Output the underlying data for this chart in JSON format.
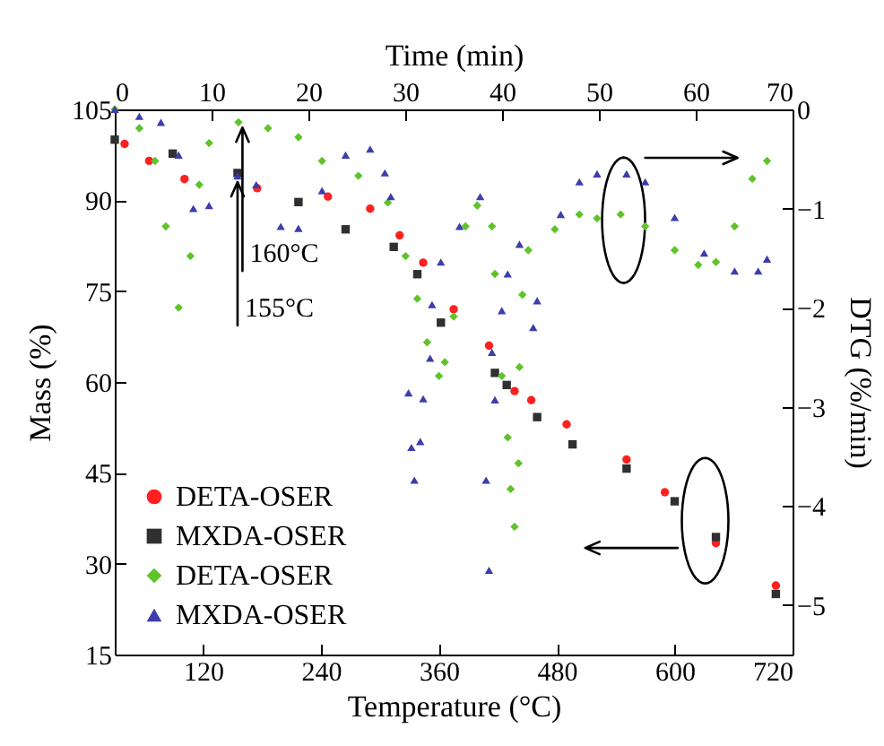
{
  "chart_data": {
    "type": "scatter",
    "xlabel": "Temperature (°C)",
    "x2label": "Time (min)",
    "ylabel": "Mass (%)",
    "y2label": "DTG (%/min)",
    "xlim": [
      30,
      720
    ],
    "xticks": [
      120,
      240,
      360,
      480,
      600,
      720
    ],
    "x2lim": [
      0,
      70
    ],
    "x2ticks": [
      0,
      10,
      20,
      30,
      40,
      50,
      60,
      70
    ],
    "ylim": [
      15,
      105
    ],
    "yticks": [
      15,
      30,
      45,
      60,
      75,
      90,
      105
    ],
    "y2lim": [
      -5.5,
      0
    ],
    "y2ticks": [
      0,
      -1,
      -2,
      -3,
      -4,
      -5
    ],
    "legend": "bottom left",
    "grid": false,
    "annotations": [
      {
        "text": "160°C",
        "x": 160,
        "y": 102
      },
      {
        "text": "155°C",
        "x": 155,
        "y": 93
      }
    ],
    "series": [
      {
        "name": "DETA-OSER",
        "color": "#ff2020",
        "marker": "circle",
        "x": [
          40,
          65,
          101,
          175,
          247,
          290,
          320,
          344,
          375,
          411,
          437,
          454,
          490,
          551,
          590,
          642,
          703
        ],
        "values": [
          99.3,
          96.5,
          93.5,
          92,
          90.6,
          88.6,
          84.2,
          79.7,
          72,
          66,
          58.5,
          57,
          53,
          47.2,
          41.8,
          33.4,
          26.4
        ]
      },
      {
        "name": "MXDA-OSER",
        "color": "#303030",
        "marker": "square",
        "x": [
          30,
          89,
          155,
          217,
          265,
          314,
          338,
          362,
          417,
          429,
          460,
          496,
          551,
          600,
          642,
          703
        ],
        "values": [
          100,
          97.7,
          94.5,
          89.7,
          85.2,
          82.3,
          77.8,
          69.8,
          61.5,
          59.5,
          54.2,
          49.7,
          45.7,
          40.3,
          34.4,
          25
        ]
      },
      {
        "name": "DETA-OSER",
        "color": "#5fc32a",
        "marker": "diamond",
        "axis": "y2",
        "x": [
          30,
          55,
          71,
          82,
          95,
          107,
          116,
          126,
          156,
          186,
          217,
          241,
          278,
          308,
          326,
          338,
          348,
          360,
          366,
          375,
          387,
          399,
          414,
          417,
          424,
          430,
          433,
          437,
          441,
          442,
          445,
          451,
          478,
          503,
          521,
          545,
          570,
          600,
          624,
          642,
          661,
          679,
          694
        ],
        "values": [
          0,
          -0.19,
          -0.52,
          -1.18,
          -2,
          -1.48,
          -0.76,
          -0.34,
          -0.13,
          -0.19,
          -0.28,
          -0.52,
          -0.67,
          -0.94,
          -1.48,
          -1.91,
          -2.35,
          -2.69,
          -2.55,
          -2.09,
          -1.18,
          -0.97,
          -1.18,
          -1.66,
          -2.69,
          -3.31,
          -3.83,
          -4.21,
          -3.57,
          -2.6,
          -1.87,
          -1.42,
          -1.21,
          -1.06,
          -1.1,
          -1.06,
          -1.18,
          -1.42,
          -1.57,
          -1.54,
          -1.18,
          -0.7,
          -0.52
        ]
      },
      {
        "name": "MXDA-OSER",
        "color": "#3d3dab",
        "marker": "triangle",
        "axis": "y2",
        "x": [
          30,
          55,
          77,
          95,
          110,
          126,
          155,
          174,
          199,
          217,
          241,
          265,
          290,
          305,
          311,
          329,
          332,
          335,
          341,
          344,
          351,
          353,
          362,
          381,
          402,
          408,
          411,
          414,
          417,
          424,
          430,
          442,
          456,
          460,
          484,
          503,
          521,
          551,
          570,
          600,
          630,
          661,
          685,
          694
        ],
        "values": [
          0,
          -0.07,
          -0.13,
          -0.46,
          -1,
          -0.97,
          -0.67,
          -0.76,
          -1.18,
          -1.2,
          -0.82,
          -0.46,
          -0.4,
          -0.64,
          -0.88,
          -2.86,
          -3.41,
          -3.74,
          -3.35,
          -2.92,
          -2.51,
          -1.97,
          -1.54,
          -1.18,
          -0.88,
          -3.74,
          -4.65,
          -2.45,
          -2.93,
          -2.03,
          -1.66,
          -1.36,
          -2.2,
          -1.93,
          -1.06,
          -0.73,
          -0.65,
          -0.65,
          -0.73,
          -1.09,
          -1.45,
          -1.63,
          -1.63,
          -1.51
        ]
      }
    ]
  }
}
